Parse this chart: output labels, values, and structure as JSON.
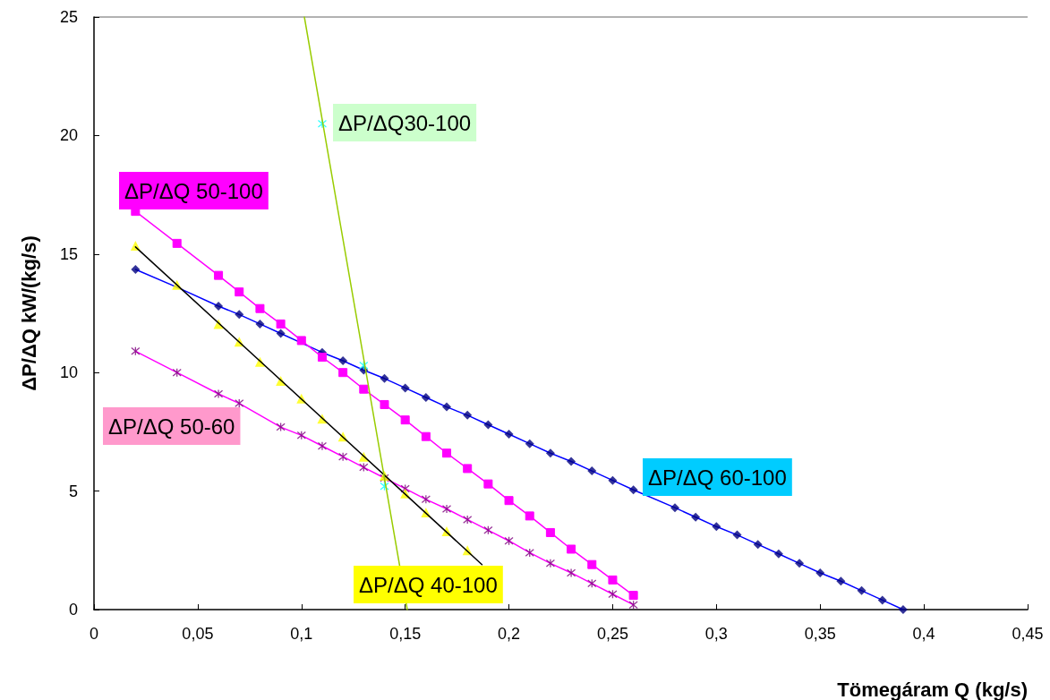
{
  "chart_data": {
    "type": "line",
    "xlabel": "Tömegáram Q (kg/s)",
    "ylabel": "ΔP/ΔQ kW/(kg/s)",
    "xlim": [
      0,
      0.45
    ],
    "ylim": [
      0,
      25
    ],
    "xticks": [
      0,
      {
        "value": 0.05,
        "label": "0,05"
      },
      {
        "value": 0.1,
        "label": "0,1"
      },
      {
        "value": 0.15,
        "label": "0,15"
      },
      {
        "value": 0.2,
        "label": "0,2"
      },
      {
        "value": 0.25,
        "label": "0,25"
      },
      {
        "value": 0.3,
        "label": "0,3"
      },
      {
        "value": 0.35,
        "label": "0,35"
      },
      {
        "value": 0.4,
        "label": "0,4"
      },
      {
        "value": 0.45,
        "label": "0,45"
      }
    ],
    "yticks": [
      0,
      5,
      10,
      15,
      20,
      25
    ],
    "grid": false,
    "legend": false,
    "series": [
      {
        "type": "line",
        "marker": "none",
        "color": "#0000ff",
        "x": [
          0.02,
          0.04,
          0.06,
          0.07,
          0.08,
          0.09,
          0.1,
          0.11,
          0.12,
          0.13,
          0.14,
          0.15,
          0.16,
          0.17,
          0.18,
          0.19,
          0.2,
          0.21,
          0.22,
          0.23,
          0.24,
          0.25,
          0.26,
          0.28,
          0.29,
          0.3,
          0.31,
          0.32,
          0.33,
          0.34,
          0.35,
          0.36,
          0.37,
          0.38,
          0.39
        ],
        "values": [
          14.35,
          13.6,
          12.8,
          12.45,
          12.05,
          11.65,
          11.25,
          10.85,
          10.5,
          10.1,
          9.75,
          9.35,
          8.95,
          8.55,
          8.2,
          7.8,
          7.4,
          7.0,
          6.6,
          6.25,
          5.85,
          5.45,
          5.05,
          4.3,
          3.9,
          3.5,
          3.15,
          2.75,
          2.35,
          1.95,
          1.55,
          1.2,
          0.8,
          0.4,
          0
        ]
      },
      {
        "type": "scatter",
        "name": "ΔP/ΔQ 60-100",
        "marker": "diamond",
        "color": "#000080",
        "x": [
          0.02,
          0.04,
          0.06,
          0.07,
          0.08,
          0.09,
          0.1,
          0.11,
          0.12,
          0.13,
          0.14,
          0.15,
          0.16,
          0.17,
          0.18,
          0.19,
          0.2,
          0.21,
          0.22,
          0.23,
          0.24,
          0.25,
          0.26,
          0.28,
          0.29,
          0.3,
          0.31,
          0.32,
          0.33,
          0.34,
          0.35,
          0.36,
          0.37,
          0.38,
          0.39
        ],
        "values": [
          14.35,
          null,
          12.8,
          12.45,
          12.05,
          11.65,
          null,
          10.85,
          10.5,
          10.1,
          9.75,
          9.35,
          8.95,
          8.55,
          8.2,
          7.8,
          7.4,
          7.0,
          6.6,
          6.25,
          5.85,
          5.45,
          5.05,
          4.3,
          3.9,
          3.5,
          3.15,
          2.75,
          2.35,
          1.95,
          1.55,
          1.2,
          0.8,
          0.4,
          0
        ]
      },
      {
        "type": "line",
        "name": "ΔP/ΔQ 50-100",
        "marker": "square",
        "color": "#ff00ff",
        "x": [
          0.02,
          0.04,
          0.06,
          0.07,
          0.08,
          0.09,
          0.1,
          0.11,
          0.12,
          0.13,
          0.14,
          0.15,
          0.16,
          0.17,
          0.18,
          0.19,
          0.2,
          0.21,
          0.22,
          0.23,
          0.24,
          0.25,
          0.26
        ],
        "values": [
          16.8,
          15.45,
          14.1,
          13.4,
          12.7,
          12.05,
          11.35,
          10.65,
          10.0,
          9.3,
          8.65,
          8.0,
          7.3,
          6.6,
          5.95,
          5.3,
          4.6,
          3.95,
          3.25,
          2.55,
          1.9,
          1.25,
          0.6
        ]
      },
      {
        "type": "line",
        "marker": "none",
        "color": "#ff00ff",
        "x": [
          0.02,
          0.04,
          0.06,
          0.07,
          0.09,
          0.1,
          0.11,
          0.12,
          0.13,
          0.14,
          0.15,
          0.16,
          0.17,
          0.18,
          0.19,
          0.2,
          0.21,
          0.22,
          0.23,
          0.24,
          0.25,
          0.26
        ],
        "values": [
          10.9,
          10.0,
          9.1,
          8.7,
          7.7,
          7.35,
          6.9,
          6.45,
          6.0,
          5.55,
          5.1,
          4.65,
          4.25,
          3.8,
          3.35,
          2.9,
          2.4,
          1.95,
          1.55,
          1.1,
          0.65,
          0.2
        ]
      },
      {
        "type": "scatter",
        "name": "ΔP/ΔQ 50-60",
        "marker": "cross",
        "color": "#800080",
        "x": [
          0.02,
          0.04,
          0.06,
          0.07,
          0.09,
          0.1,
          0.11,
          0.12,
          0.13,
          0.14,
          0.15,
          0.16,
          0.17,
          0.18,
          0.19,
          0.2,
          0.21,
          0.22,
          0.23,
          0.24,
          0.25,
          0.26
        ],
        "values": [
          10.9,
          10.0,
          9.1,
          8.7,
          7.7,
          7.35,
          6.9,
          6.45,
          6.0,
          5.55,
          5.1,
          4.65,
          4.25,
          3.8,
          3.35,
          2.9,
          2.4,
          1.95,
          1.55,
          1.1,
          0.65,
          0.2
        ]
      },
      {
        "type": "scatter",
        "name": "ΔP/ΔQ 40-100",
        "marker": "triangle",
        "color": "#ffff00",
        "x": [
          0.02,
          0.04,
          0.06,
          0.07,
          0.08,
          0.09,
          0.1,
          0.11,
          0.12,
          0.13,
          0.14,
          0.15,
          0.16,
          0.17,
          0.18
        ],
        "values": [
          15.35,
          13.7,
          12.05,
          11.3,
          10.45,
          9.65,
          8.9,
          8.05,
          7.3,
          6.45,
          5.65,
          4.9,
          4.1,
          3.3,
          2.5
        ]
      },
      {
        "type": "line",
        "marker": "none",
        "color": "#000000",
        "x": [
          0.02,
          0.187
        ],
        "values": [
          15.3,
          1.9
        ]
      },
      {
        "type": "scatter",
        "name": "ΔP/ΔQ30-100",
        "marker": "cross",
        "color": "#00ffff",
        "x": [
          0.11,
          0.13,
          0.14
        ],
        "values": [
          20.5,
          10.3,
          5.2
        ]
      },
      {
        "type": "line",
        "marker": "none",
        "color": "#99cc00",
        "x": [
          0.1014,
          0.151
        ],
        "values": [
          25,
          0
        ]
      }
    ]
  }
}
